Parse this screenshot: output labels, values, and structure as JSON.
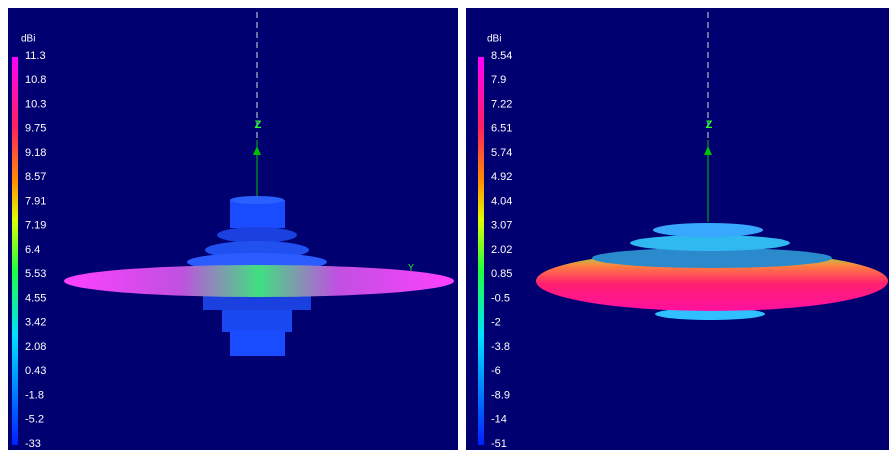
{
  "panels": [
    {
      "unit": "dBi",
      "axis_label": "Z",
      "marker_label": "Y",
      "scale": [
        "11.3",
        "10.8",
        "10.3",
        "9.75",
        "9.18",
        "8.57",
        "7.91",
        "7.19",
        "6.4",
        "5.53",
        "4.55",
        "3.42",
        "2.08",
        "0.43",
        "-1.8",
        "-5.2",
        "-33"
      ]
    },
    {
      "unit": "dBi",
      "axis_label": "Z",
      "scale": [
        "8.54",
        "7.9",
        "7.22",
        "6.51",
        "5.74",
        "4.92",
        "4.04",
        "3.07",
        "2.02",
        "0.85",
        "-0.5",
        "-2",
        "-3.8",
        "-6",
        "-8.9",
        "-14",
        "-51"
      ]
    }
  ]
}
